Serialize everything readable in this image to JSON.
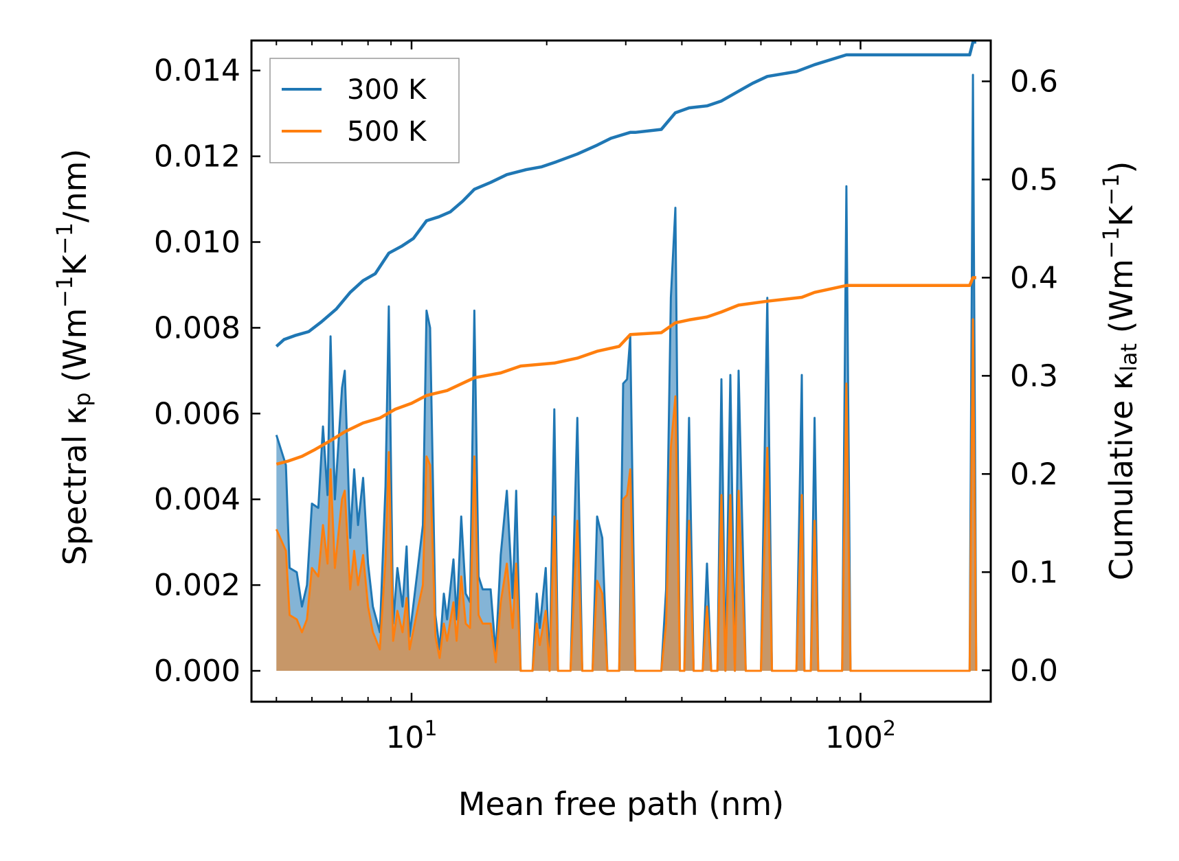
{
  "chart_data": {
    "type": "line",
    "title": "",
    "xlabel": "Mean free path (nm)",
    "ylabel": "Spectral κp (Wm−1K−1/nm)",
    "y2label": "Cumulative κlat (Wm−1K−1)",
    "xscale": "log",
    "xlim": [
      4.4,
      195
    ],
    "ylim": [
      -0.00072,
      0.0147
    ],
    "y2lim": [
      -0.032,
      0.6416
    ],
    "xticks": [
      10,
      100
    ],
    "x_tick_labels": [
      "10",
      "100"
    ],
    "x_tick_exponents": [
      "1",
      "2"
    ],
    "yticks": [
      "0.000",
      "0.002",
      "0.004",
      "0.006",
      "0.008",
      "0.010",
      "0.012",
      "0.014"
    ],
    "y2ticks": [
      "0.0",
      "0.1",
      "0.2",
      "0.3",
      "0.4",
      "0.5",
      "0.6"
    ],
    "legend": {
      "position": "top-left",
      "entries": [
        "300 K",
        "500 K"
      ]
    },
    "colors": {
      "300 K": "#1f77b4",
      "500 K": "#ff7f0e"
    },
    "spectral_series": [
      {
        "name": "300 K",
        "points": [
          [
            5.0,
            0.0055
          ],
          [
            5.25,
            0.0048
          ],
          [
            5.35,
            0.0024
          ],
          [
            5.55,
            0.0023
          ],
          [
            5.7,
            0.0015
          ],
          [
            5.85,
            0.002
          ],
          [
            6.0,
            0.0039
          ],
          [
            6.2,
            0.0038
          ],
          [
            6.35,
            0.0057
          ],
          [
            6.5,
            0.0041
          ],
          [
            6.6,
            0.0078
          ],
          [
            6.75,
            0.004
          ],
          [
            7.0,
            0.0066
          ],
          [
            7.1,
            0.007
          ],
          [
            7.3,
            0.0031
          ],
          [
            7.45,
            0.0047
          ],
          [
            7.6,
            0.0034
          ],
          [
            7.8,
            0.0045
          ],
          [
            8.0,
            0.0025
          ],
          [
            8.2,
            0.0015
          ],
          [
            8.5,
            0.0009
          ],
          [
            8.75,
            0.0043
          ],
          [
            8.9,
            0.0085
          ],
          [
            9.1,
            0.0011
          ],
          [
            9.3,
            0.0024
          ],
          [
            9.55,
            0.0015
          ],
          [
            9.75,
            0.0029
          ],
          [
            9.9,
            0.0008
          ],
          [
            10.3,
            0.0023
          ],
          [
            10.6,
            0.0034
          ],
          [
            10.8,
            0.0084
          ],
          [
            11.0,
            0.008
          ],
          [
            11.3,
            0.0013
          ],
          [
            11.55,
            0.0005
          ],
          [
            11.8,
            0.0018
          ],
          [
            12.0,
            0.0012
          ],
          [
            12.4,
            0.0026
          ],
          [
            12.6,
            0.0012
          ],
          [
            12.9,
            0.0036
          ],
          [
            13.2,
            0.0018
          ],
          [
            13.5,
            0.0016
          ],
          [
            13.8,
            0.0084
          ],
          [
            14.1,
            0.0022
          ],
          [
            14.4,
            0.0019
          ],
          [
            14.7,
            0.0019
          ],
          [
            15.0,
            0.0019
          ],
          [
            15.4,
            0.0004
          ],
          [
            15.8,
            0.0027
          ],
          [
            16.3,
            0.0042
          ],
          [
            16.8,
            0.0017
          ],
          [
            17.1,
            0.0042
          ],
          [
            17.5,
            0.0
          ],
          [
            18.6,
            0.0
          ],
          [
            19.0,
            0.0018
          ],
          [
            19.3,
            0.001
          ],
          [
            19.9,
            0.0024
          ],
          [
            20.3,
            0.0
          ],
          [
            20.8,
            0.0061
          ],
          [
            21.2,
            0.0
          ],
          [
            22.6,
            0.0
          ],
          [
            23.4,
            0.0059
          ],
          [
            24.0,
            0.0
          ],
          [
            25.3,
            0.0
          ],
          [
            25.9,
            0.0036
          ],
          [
            26.6,
            0.0031
          ],
          [
            27.3,
            0.0
          ],
          [
            29.0,
            0.0
          ],
          [
            29.6,
            0.0067
          ],
          [
            30.2,
            0.0068
          ],
          [
            30.7,
            0.0078
          ],
          [
            31.5,
            0.0
          ],
          [
            36.0,
            0.0
          ],
          [
            36.9,
            0.0019
          ],
          [
            37.8,
            0.0087
          ],
          [
            38.7,
            0.0108
          ],
          [
            39.6,
            0.0
          ],
          [
            40.5,
            0.0
          ],
          [
            41.5,
            0.0059
          ],
          [
            42.5,
            0.0
          ],
          [
            44.5,
            0.0
          ],
          [
            45.5,
            0.0025
          ],
          [
            46.5,
            0.0
          ],
          [
            48.0,
            0.0
          ],
          [
            49.0,
            0.0068
          ],
          [
            50.0,
            0.0
          ],
          [
            51.3,
            0.0069
          ],
          [
            52.5,
            0.0
          ],
          [
            53.5,
            0.007
          ],
          [
            54.5,
            0.0035
          ],
          [
            55.5,
            0.0
          ],
          [
            57.5,
            0.0
          ],
          [
            60.0,
            0.0
          ],
          [
            62.0,
            0.0087
          ],
          [
            63.5,
            0.0
          ],
          [
            72.0,
            0.0
          ],
          [
            74.0,
            0.0069
          ],
          [
            75.0,
            0.0
          ],
          [
            77.5,
            0.0
          ],
          [
            79.0,
            0.0059
          ],
          [
            80.5,
            0.0
          ],
          [
            91.0,
            0.0
          ],
          [
            93.0,
            0.0113
          ],
          [
            95.0,
            0.0
          ],
          [
            175.0,
            0.0
          ],
          [
            178.0,
            0.0139
          ],
          [
            181.0,
            0.0
          ]
        ]
      },
      {
        "name": "500 K",
        "points": [
          [
            5.0,
            0.0033
          ],
          [
            5.25,
            0.0028
          ],
          [
            5.35,
            0.0013
          ],
          [
            5.55,
            0.0012
          ],
          [
            5.7,
            0.0009
          ],
          [
            5.85,
            0.0012
          ],
          [
            6.0,
            0.0024
          ],
          [
            6.2,
            0.0022
          ],
          [
            6.35,
            0.0034
          ],
          [
            6.5,
            0.0025
          ],
          [
            6.6,
            0.0047
          ],
          [
            6.75,
            0.0024
          ],
          [
            7.0,
            0.004
          ],
          [
            7.1,
            0.0042
          ],
          [
            7.3,
            0.0019
          ],
          [
            7.45,
            0.0028
          ],
          [
            7.6,
            0.002
          ],
          [
            7.8,
            0.0027
          ],
          [
            8.0,
            0.0015
          ],
          [
            8.2,
            0.0009
          ],
          [
            8.5,
            0.0005
          ],
          [
            8.75,
            0.0026
          ],
          [
            8.9,
            0.0051
          ],
          [
            9.1,
            0.0007
          ],
          [
            9.3,
            0.0014
          ],
          [
            9.55,
            0.0009
          ],
          [
            9.75,
            0.0017
          ],
          [
            9.9,
            0.0005
          ],
          [
            10.3,
            0.0014
          ],
          [
            10.6,
            0.002
          ],
          [
            10.8,
            0.005
          ],
          [
            11.0,
            0.0048
          ],
          [
            11.3,
            0.0008
          ],
          [
            11.55,
            0.0003
          ],
          [
            11.8,
            0.0011
          ],
          [
            12.0,
            0.0007
          ],
          [
            12.4,
            0.0016
          ],
          [
            12.6,
            0.0007
          ],
          [
            12.9,
            0.0022
          ],
          [
            13.2,
            0.0011
          ],
          [
            13.5,
            0.001
          ],
          [
            13.8,
            0.005
          ],
          [
            14.1,
            0.0013
          ],
          [
            14.4,
            0.0011
          ],
          [
            14.7,
            0.0011
          ],
          [
            15.0,
            0.0011
          ],
          [
            15.4,
            0.0002
          ],
          [
            15.8,
            0.0016
          ],
          [
            16.3,
            0.0025
          ],
          [
            16.8,
            0.001
          ],
          [
            17.1,
            0.0025
          ],
          [
            17.5,
            0.0
          ],
          [
            18.6,
            0.0
          ],
          [
            19.0,
            0.0011
          ],
          [
            19.3,
            0.0006
          ],
          [
            19.9,
            0.0014
          ],
          [
            20.3,
            0.0
          ],
          [
            20.8,
            0.0036
          ],
          [
            21.2,
            0.0
          ],
          [
            22.6,
            0.0
          ],
          [
            23.4,
            0.0035
          ],
          [
            24.0,
            0.0
          ],
          [
            25.3,
            0.0
          ],
          [
            25.9,
            0.0021
          ],
          [
            26.6,
            0.0018
          ],
          [
            27.3,
            0.0
          ],
          [
            29.0,
            0.0
          ],
          [
            29.6,
            0.004
          ],
          [
            30.2,
            0.0041
          ],
          [
            30.7,
            0.0047
          ],
          [
            31.5,
            0.0
          ],
          [
            36.0,
            0.0
          ],
          [
            36.9,
            0.0011
          ],
          [
            37.8,
            0.0052
          ],
          [
            38.7,
            0.0064
          ],
          [
            39.6,
            0.0
          ],
          [
            40.5,
            0.0
          ],
          [
            41.5,
            0.0035
          ],
          [
            42.5,
            0.0
          ],
          [
            44.5,
            0.0
          ],
          [
            45.5,
            0.0015
          ],
          [
            46.5,
            0.0
          ],
          [
            48.0,
            0.0
          ],
          [
            49.0,
            0.0041
          ],
          [
            50.0,
            0.0
          ],
          [
            51.3,
            0.0041
          ],
          [
            52.5,
            0.0
          ],
          [
            53.5,
            0.0042
          ],
          [
            54.5,
            0.0021
          ],
          [
            55.5,
            0.0
          ],
          [
            57.5,
            0.0
          ],
          [
            60.0,
            0.0
          ],
          [
            62.0,
            0.0052
          ],
          [
            63.5,
            0.0
          ],
          [
            72.0,
            0.0
          ],
          [
            74.0,
            0.0041
          ],
          [
            75.0,
            0.0
          ],
          [
            77.5,
            0.0
          ],
          [
            79.0,
            0.0035
          ],
          [
            80.5,
            0.0
          ],
          [
            91.0,
            0.0
          ],
          [
            93.0,
            0.0067
          ],
          [
            95.0,
            0.0
          ],
          [
            175.0,
            0.0
          ],
          [
            178.0,
            0.0082
          ],
          [
            181.0,
            0.0
          ]
        ]
      }
    ],
    "cumulative_series": [
      {
        "name": "300 K",
        "points": [
          [
            5.0,
            0.33
          ],
          [
            5.2,
            0.337
          ],
          [
            5.5,
            0.341
          ],
          [
            5.9,
            0.345
          ],
          [
            6.3,
            0.355
          ],
          [
            6.8,
            0.368
          ],
          [
            7.3,
            0.385
          ],
          [
            7.8,
            0.397
          ],
          [
            8.3,
            0.404
          ],
          [
            8.9,
            0.425
          ],
          [
            9.5,
            0.432
          ],
          [
            10.1,
            0.44
          ],
          [
            10.8,
            0.458
          ],
          [
            11.5,
            0.462
          ],
          [
            12.2,
            0.467
          ],
          [
            13.0,
            0.478
          ],
          [
            13.8,
            0.49
          ],
          [
            15.0,
            0.497
          ],
          [
            16.3,
            0.505
          ],
          [
            18.0,
            0.51
          ],
          [
            19.5,
            0.513
          ],
          [
            21.0,
            0.518
          ],
          [
            23.4,
            0.526
          ],
          [
            25.9,
            0.535
          ],
          [
            27.8,
            0.542
          ],
          [
            30.7,
            0.548
          ],
          [
            31.5,
            0.548
          ],
          [
            36.0,
            0.551
          ],
          [
            38.7,
            0.568
          ],
          [
            41.5,
            0.573
          ],
          [
            45.5,
            0.575
          ],
          [
            49.0,
            0.58
          ],
          [
            53.5,
            0.59
          ],
          [
            57.5,
            0.598
          ],
          [
            62.0,
            0.605
          ],
          [
            72.0,
            0.61
          ],
          [
            79.0,
            0.617
          ],
          [
            93.0,
            0.627
          ],
          [
            175.0,
            0.627
          ],
          [
            178.0,
            0.64
          ],
          [
            181.0,
            0.64
          ]
        ]
      },
      {
        "name": "500 K",
        "points": [
          [
            5.0,
            0.21
          ],
          [
            5.3,
            0.213
          ],
          [
            5.7,
            0.218
          ],
          [
            6.1,
            0.225
          ],
          [
            6.6,
            0.234
          ],
          [
            7.1,
            0.243
          ],
          [
            7.8,
            0.252
          ],
          [
            8.5,
            0.257
          ],
          [
            9.2,
            0.266
          ],
          [
            10.0,
            0.272
          ],
          [
            10.8,
            0.28
          ],
          [
            12.0,
            0.285
          ],
          [
            13.8,
            0.298
          ],
          [
            15.8,
            0.303
          ],
          [
            17.5,
            0.31
          ],
          [
            20.8,
            0.313
          ],
          [
            23.4,
            0.318
          ],
          [
            25.9,
            0.325
          ],
          [
            29.0,
            0.33
          ],
          [
            30.7,
            0.342
          ],
          [
            36.0,
            0.344
          ],
          [
            38.7,
            0.354
          ],
          [
            41.5,
            0.357
          ],
          [
            45.5,
            0.36
          ],
          [
            49.0,
            0.365
          ],
          [
            53.5,
            0.372
          ],
          [
            62.0,
            0.376
          ],
          [
            74.0,
            0.38
          ],
          [
            79.0,
            0.385
          ],
          [
            93.0,
            0.392
          ],
          [
            175.0,
            0.392
          ],
          [
            178.0,
            0.4
          ],
          [
            181.0,
            0.4
          ]
        ]
      }
    ]
  }
}
